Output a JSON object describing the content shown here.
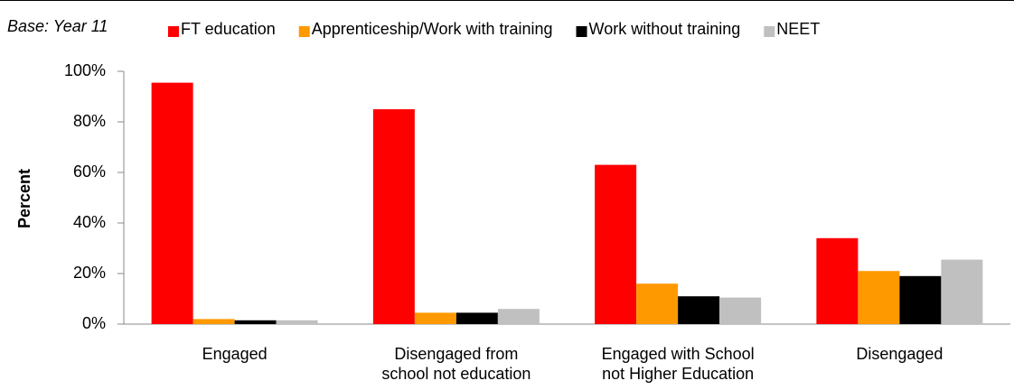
{
  "chart_data": {
    "type": "bar",
    "subtitle": "Base: Year 11",
    "y_label": "Percent",
    "categories": [
      "Engaged",
      "Disengaged from\nschool not education",
      "Engaged with School\nnot Higher Education",
      "Disengaged"
    ],
    "series": [
      {
        "name": "FT education",
        "color": "#ff0000",
        "values": [
          95.5,
          85,
          63,
          34
        ]
      },
      {
        "name": "Apprenticeship/Work with training",
        "color": "#ff9900",
        "values": [
          2,
          4.5,
          16,
          21
        ]
      },
      {
        "name": "Work without training",
        "color": "#000000",
        "values": [
          1.5,
          4.5,
          11,
          19
        ]
      },
      {
        "name": "NEET",
        "color": "#c0c0c0",
        "values": [
          1.5,
          6,
          10.5,
          25.5
        ]
      }
    ],
    "ylim": [
      0,
      100
    ],
    "yticks": [
      {
        "value": 0,
        "label": "0%"
      },
      {
        "value": 20,
        "label": "20%"
      },
      {
        "value": 40,
        "label": "40%"
      },
      {
        "value": 60,
        "label": "60%"
      },
      {
        "value": 80,
        "label": "80%"
      },
      {
        "value": 100,
        "label": "100%"
      }
    ],
    "legend": "top"
  }
}
